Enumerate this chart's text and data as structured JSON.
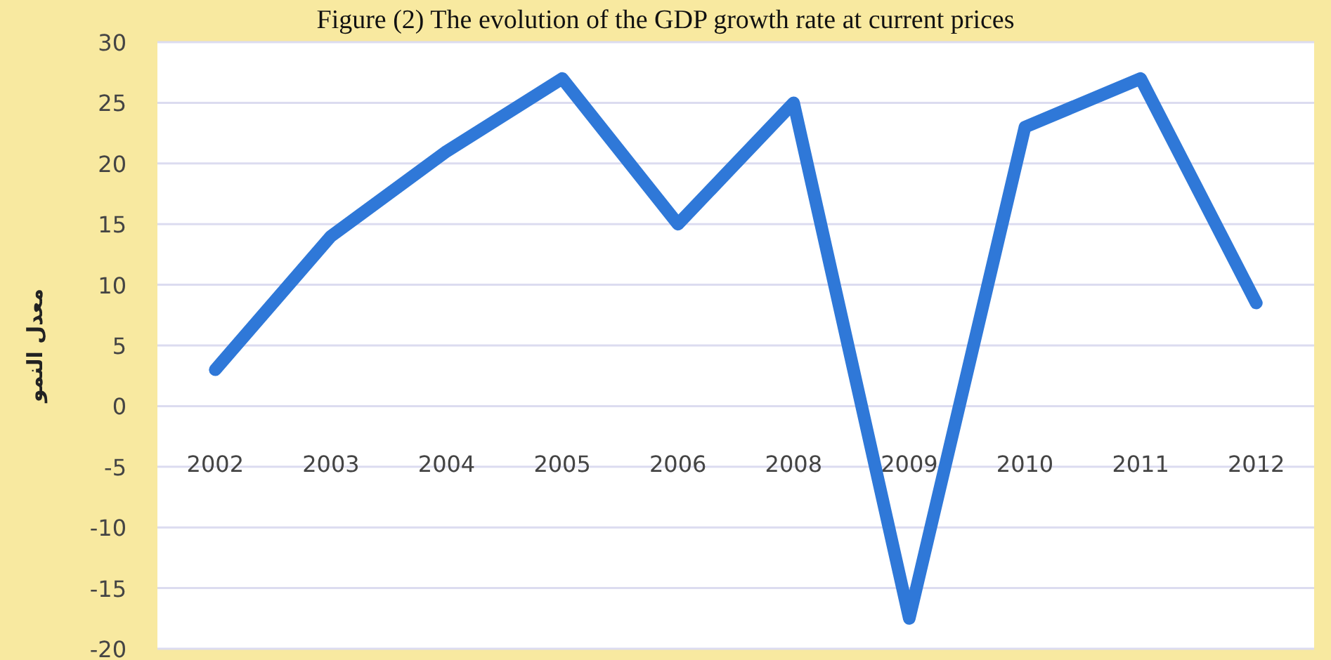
{
  "chart_data": {
    "type": "line",
    "title": "Figure (2) The evolution of the GDP growth rate at current prices",
    "ylabel": "معدل النمو",
    "categories": [
      "2002",
      "2003",
      "2004",
      "2005",
      "2006",
      "2008",
      "2009",
      "2010",
      "2011",
      "2012"
    ],
    "series": [
      {
        "color": "#2f78d8",
        "values": [
          3,
          14,
          21,
          27,
          15,
          25,
          -17.5,
          23,
          27,
          8.5
        ]
      }
    ],
    "ylim": [
      -20,
      30
    ],
    "yticks": [
      -20,
      -15,
      -10,
      -5,
      0,
      5,
      10,
      15,
      20,
      25,
      30
    ],
    "grid": "y",
    "marker": "none",
    "line_style": "solid"
  }
}
